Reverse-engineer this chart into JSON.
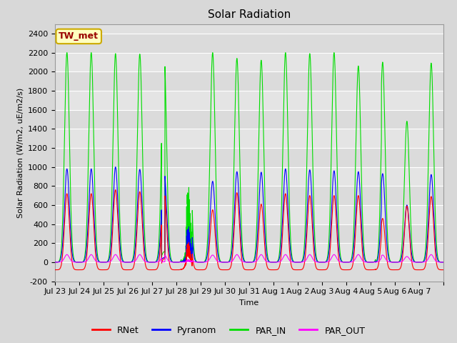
{
  "title": "Solar Radiation",
  "ylabel": "Solar Radiation (W/m2, uE/m2/s)",
  "xlabel": "Time",
  "ylim": [
    -200,
    2500
  ],
  "yticks": [
    -200,
    0,
    200,
    400,
    600,
    800,
    1000,
    1200,
    1400,
    1600,
    1800,
    2000,
    2200,
    2400
  ],
  "fig_bg_color": "#d8d8d8",
  "plot_bg_color": "#e0e0e0",
  "grid_color": "#ffffff",
  "grid_lw": 0.8,
  "colors": {
    "RNet": "#ff0000",
    "Pyranom": "#0000ff",
    "PAR_IN": "#00dd00",
    "PAR_OUT": "#ff00ff"
  },
  "legend_label": "TW_met",
  "legend_box_color": "#ffffc0",
  "legend_box_edge": "#ccaa00",
  "n_days": 16,
  "day_labels": [
    "Jul 23",
    "Jul 24",
    "Jul 25",
    "Jul 26",
    "Jul 27",
    "Jul 28",
    "Jul 29",
    "Jul 30",
    "Jul 31",
    "Aug 1",
    "Aug 2",
    "Aug 3",
    "Aug 4",
    "Aug 5",
    "Aug 6",
    "Aug 6",
    "Aug 7"
  ],
  "title_fontsize": 11,
  "axis_fontsize": 8,
  "tick_fontsize": 8,
  "legend_fontsize": 9,
  "linewidth": 0.8
}
